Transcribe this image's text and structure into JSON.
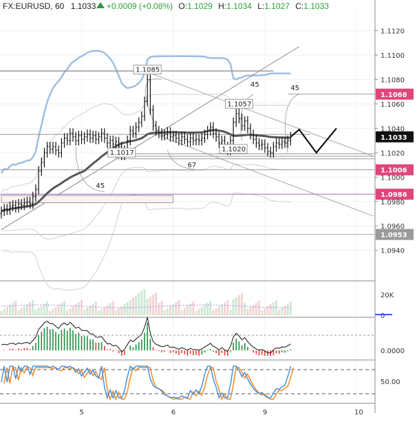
{
  "header": {
    "symbol_line": "FX:EURUSD, 60",
    "price": "1.1033",
    "change": "+0.0009 (+0.08%)",
    "ohlc": {
      "o_label": "O:",
      "o": "1.1029",
      "h_label": "H:",
      "h": "1.1034",
      "l_label": "L:",
      "l": "1.1027",
      "c_label": "C:",
      "c": "1.1033"
    },
    "up_arrow_icon": "triangle-up-icon"
  },
  "colors": {
    "up": "#26a69a",
    "down": "#ef5350",
    "green_text": "#2e9e3a",
    "ma_dark": "#555555",
    "bb_outer": "#9dbfe0",
    "bb_inner": "#d0d0d0",
    "magenta": "#e0457b",
    "stoch_k": "#4a90d9",
    "stoch_d": "#f08a24",
    "hist_up": "#1e8e3e",
    "hist_down": "#e53935"
  },
  "chart_data": [
    {
      "type": "candlestick",
      "ylim": [
        1.0915,
        1.1135
      ],
      "y_ticks": [
        "1.1120",
        "1.1100",
        "1.1080",
        "1.1060",
        "1.1040",
        "1.1020",
        "1.1000",
        "1.0980",
        "1.0960",
        "1.0940"
      ],
      "x_ticks": [
        "5",
        "6",
        "9",
        "10"
      ],
      "x_tick_index": [
        28,
        60,
        92,
        124
      ],
      "bars_total": 130,
      "price_labels": [
        {
          "text": "1.1068",
          "y": 1.1068,
          "style": "magenta"
        },
        {
          "text": "1.1033",
          "y": 1.1033,
          "style": "black"
        },
        {
          "text": "1.1006",
          "y": 1.1006,
          "style": "magenta"
        },
        {
          "text": "1.0986",
          "y": 1.0986,
          "style": "magenta"
        },
        {
          "text": "1.0953",
          "y": 1.0953,
          "style": "gray"
        }
      ],
      "annotations": [
        {
          "text": "1.1085",
          "i": 51,
          "y": 1.1085
        },
        {
          "text": "1.1057",
          "i": 83,
          "y": 1.1057
        },
        {
          "text": "1.1017",
          "i": 42,
          "y": 1.1017
        },
        {
          "text": "1.1020",
          "i": 81,
          "y": 1.102
        },
        {
          "text": "45",
          "i": 33,
          "y": 1.099
        },
        {
          "text": "67",
          "i": 65,
          "y": 1.1007
        },
        {
          "text": "45",
          "i": 87,
          "y": 1.1073
        },
        {
          "text": "45",
          "i": 101,
          "y": 1.107
        }
      ],
      "ohlc_close": [
        1.0972,
        1.0974,
        1.0973,
        1.0976,
        1.0977,
        1.0975,
        1.0978,
        1.0977,
        1.0979,
        1.098,
        1.0978,
        1.0984,
        1.099,
        1.1005,
        1.1012,
        1.102,
        1.1025,
        1.1023,
        1.1025,
        1.1022,
        1.102,
        1.1028,
        1.1032,
        1.103,
        1.1036,
        1.1033,
        1.103,
        1.1034,
        1.1031,
        1.1033,
        1.1035,
        1.1032,
        1.1034,
        1.1031,
        1.1033,
        1.1036,
        1.1032,
        1.1028,
        1.103,
        1.1027,
        1.1029,
        1.1025,
        1.1018,
        1.1022,
        1.103,
        1.1038,
        1.1036,
        1.1041,
        1.1045,
        1.105,
        1.1062,
        1.108,
        1.1055,
        1.1042,
        1.1038,
        1.1036,
        1.1034,
        1.1035,
        1.1037,
        1.1033,
        1.1034,
        1.1032,
        1.103,
        1.1033,
        1.1031,
        1.1029,
        1.1032,
        1.103,
        1.1031,
        1.103,
        1.1032,
        1.1035,
        1.1038,
        1.1041,
        1.1036,
        1.1033,
        1.1028,
        1.103,
        1.1025,
        1.1022,
        1.103,
        1.1045,
        1.1052,
        1.1048,
        1.1042,
        1.1046,
        1.104,
        1.1035,
        1.1031,
        1.1028,
        1.1026,
        1.1027,
        1.1024,
        1.1021,
        1.102,
        1.1025,
        1.1028,
        1.1027,
        1.1029,
        1.1028,
        1.103,
        1.1033
      ],
      "projection": [
        {
          "i": 101,
          "y": 1.1033
        },
        {
          "i": 104,
          "y": 1.1039
        },
        {
          "i": 110,
          "y": 1.102
        },
        {
          "i": 117,
          "y": 1.104
        }
      ]
    },
    {
      "type": "bar",
      "name": "volume",
      "y_ticks": [
        "20K",
        "0"
      ]
    },
    {
      "type": "bar",
      "name": "histogram",
      "y_ticks": [
        "0.0000"
      ]
    },
    {
      "type": "line",
      "name": "stochastic",
      "y_ticks": [
        "50.00"
      ]
    }
  ]
}
